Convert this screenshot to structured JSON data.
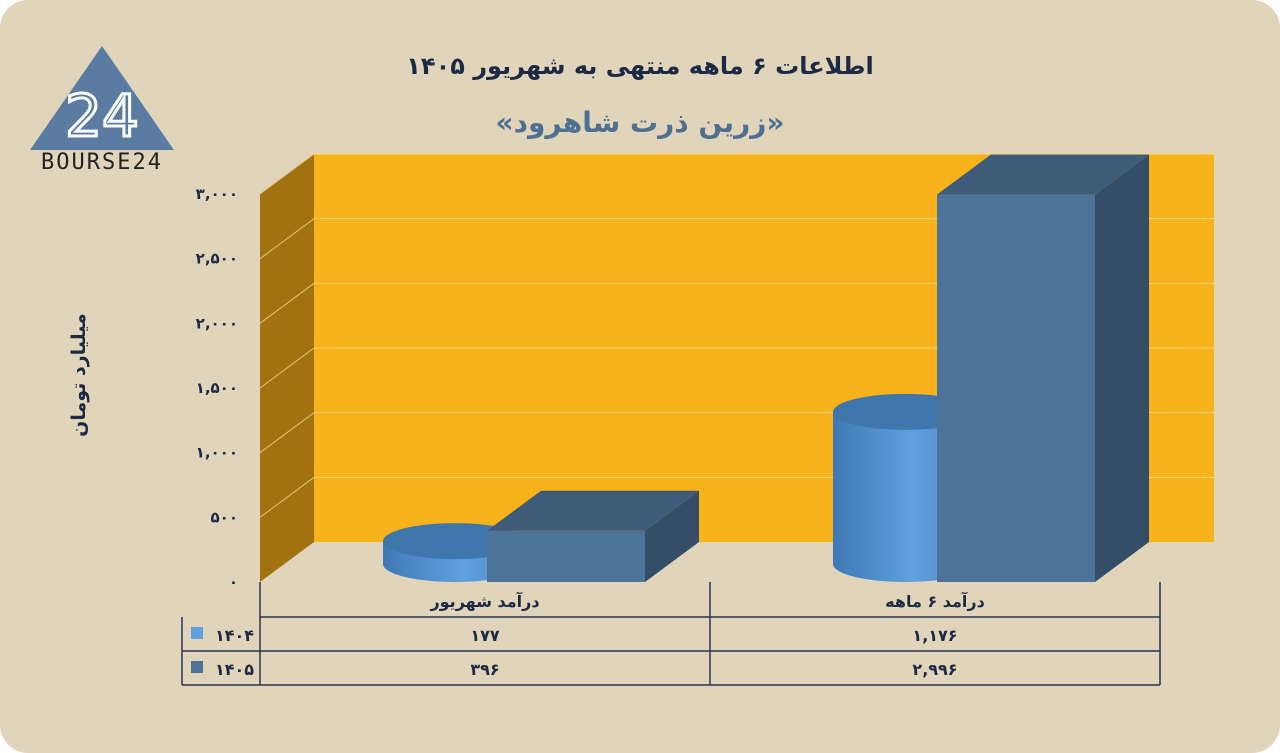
{
  "header": {
    "title": "اطلاعات ۶ ماهه منتهی به شهریور ۱۴۰۵",
    "subtitle": "«زرین ذرت شاهرود»"
  },
  "logo": {
    "text": "BOURSE24",
    "mark": "24"
  },
  "colors": {
    "background": "#e0d5bb",
    "plot_back": "#f8b21a",
    "plot_side": "#a27210",
    "series_1404": "#5fa0de",
    "series_1405": "#4e7399"
  },
  "chart_data": {
    "type": "bar",
    "subtype": "3d-column",
    "ylabel": "میلیارد تومان",
    "ylim": [
      0,
      3000
    ],
    "y_ticks": [
      0,
      500,
      1000,
      1500,
      2000,
      2500,
      3000
    ],
    "y_tick_labels": [
      "۰",
      "۵۰۰",
      "۱,۰۰۰",
      "۱,۵۰۰",
      "۲,۰۰۰",
      "۲,۵۰۰",
      "۳,۰۰۰"
    ],
    "categories": [
      "درآمد ۶ ماهه",
      "درآمد شهریور"
    ],
    "series": [
      {
        "name": "۱۴۰۴",
        "shape": "cylinder",
        "values": [
          1176,
          177
        ],
        "labels": [
          "۱,۱۷۶",
          "۱۷۷"
        ]
      },
      {
        "name": "۱۴۰۵",
        "shape": "box",
        "values": [
          2996,
          396
        ],
        "labels": [
          "۲,۹۹۶",
          "۳۹۶"
        ]
      }
    ],
    "legend": "data-table-bottom",
    "grid": true
  }
}
